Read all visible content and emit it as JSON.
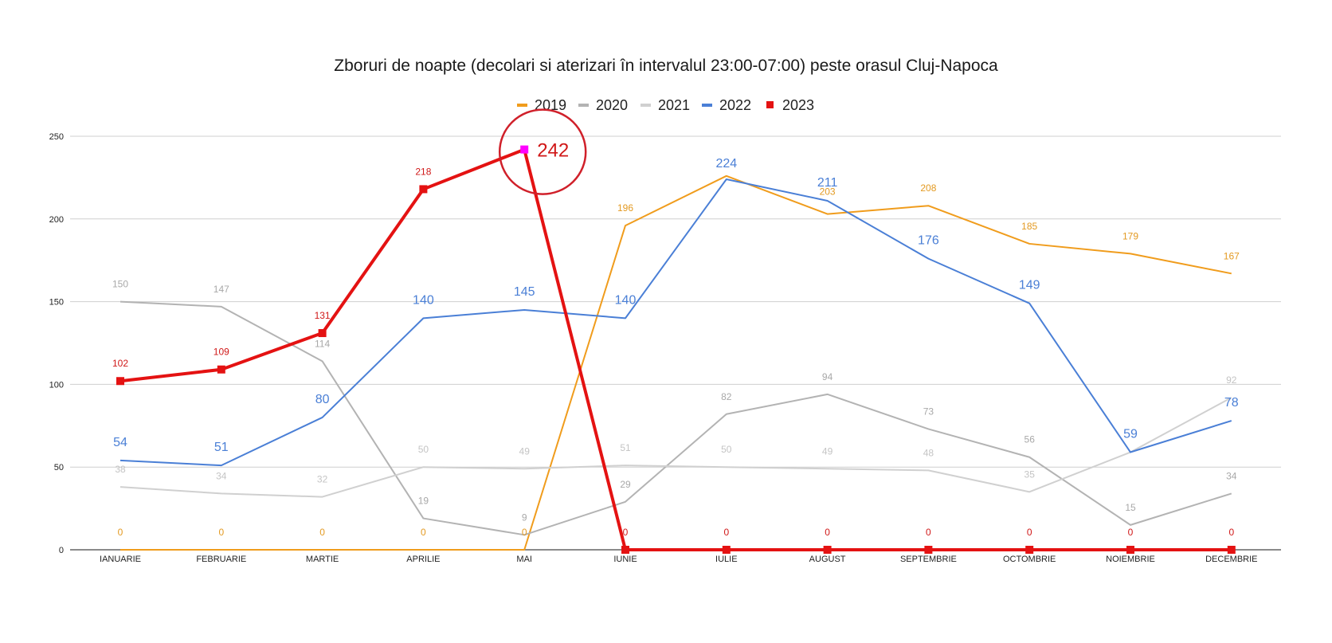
{
  "chart_data": {
    "type": "line",
    "title": "Zboruri de noapte (decolari si aterizari în intervalul 23:00-07:00) peste orasul Cluj-Napoca",
    "categories": [
      "IANUARIE",
      "FEBRUARIE",
      "MARTIE",
      "APRILIE",
      "MAI",
      "IUNIE",
      "IULIE",
      "AUGUST",
      "SEPTEMBRIE",
      "OCTOMBRIE",
      "NOIEMBRIE",
      "DECEMBRIE"
    ],
    "ylim": [
      0,
      250
    ],
    "yticks": [
      "0",
      "50",
      "100",
      "150",
      "200",
      "250"
    ],
    "grid": true,
    "legend_position": "top",
    "series": [
      {
        "name": "2019",
        "color": "#f09c1c",
        "values": [
          0,
          0,
          0,
          0,
          0,
          196,
          226,
          203,
          208,
          185,
          179,
          167
        ]
      },
      {
        "name": "2020",
        "color": "#b3b3b3",
        "values": [
          150,
          147,
          114,
          19,
          9,
          29,
          82,
          94,
          73,
          56,
          15,
          34
        ]
      },
      {
        "name": "2021",
        "color": "#d0d0d0",
        "values": [
          38,
          34,
          32,
          50,
          49,
          51,
          50,
          49,
          48,
          35,
          59,
          92
        ]
      },
      {
        "name": "2022",
        "color": "#4a7fd6",
        "values": [
          54,
          51,
          80,
          140,
          145,
          140,
          224,
          211,
          176,
          149,
          59,
          78
        ]
      },
      {
        "name": "2023",
        "color": "#e41212",
        "values": [
          102,
          109,
          131,
          218,
          242,
          0,
          0,
          0,
          0,
          0,
          0,
          0
        ]
      }
    ],
    "annotation": {
      "label": "242",
      "series": "2023",
      "category": "MAI",
      "highlight_color": "#ff00ff",
      "circle_color": "#d0202a"
    }
  }
}
